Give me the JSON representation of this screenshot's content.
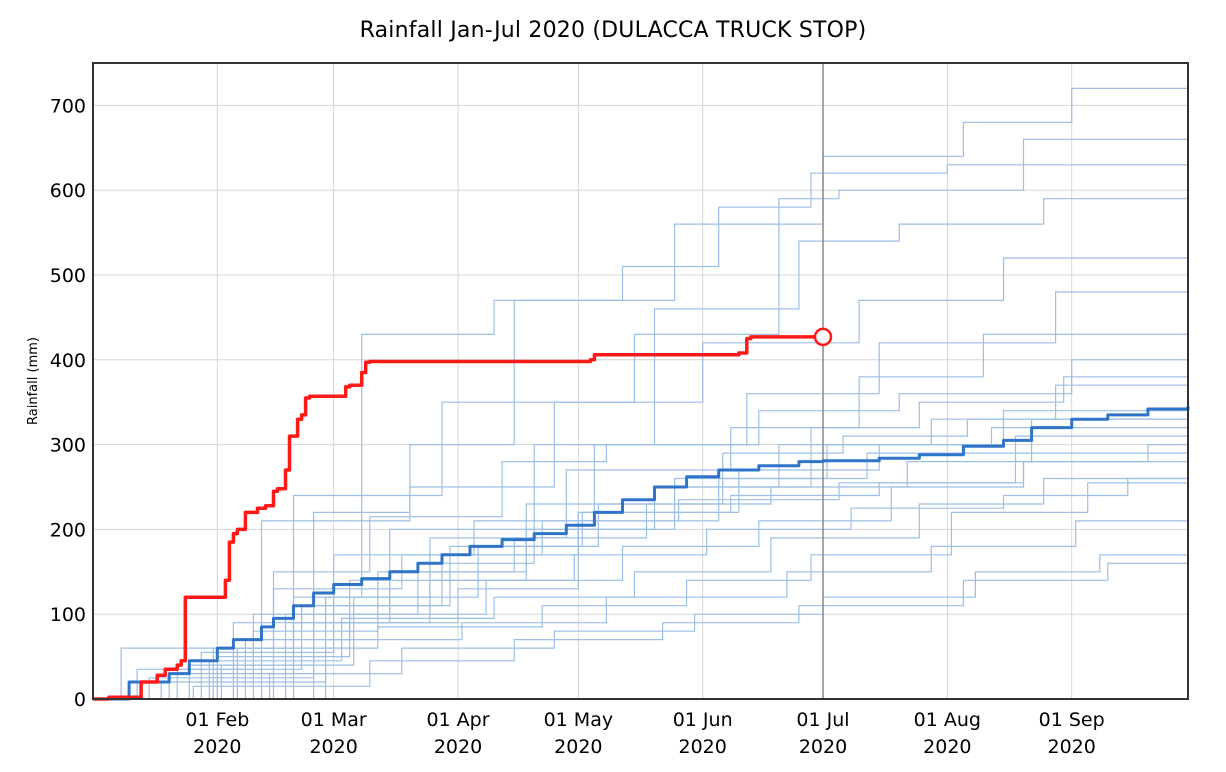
{
  "chart_data": {
    "type": "line",
    "title": "Rainfall Jan-Jul 2020 (DULACCA TRUCK STOP)",
    "xlabel": "",
    "ylabel": "Rainfall (mm)",
    "xlim": [
      "2020-01-01",
      "2020-09-30"
    ],
    "ylim": [
      0,
      750
    ],
    "grid": true,
    "legend": "none",
    "y_ticks": [
      0,
      100,
      200,
      300,
      400,
      500,
      600,
      700
    ],
    "x_ticks": [
      {
        "date": "2020-02-01",
        "label": [
          "01 Feb",
          "2020"
        ]
      },
      {
        "date": "2020-03-01",
        "label": [
          "01 Mar",
          "2020"
        ]
      },
      {
        "date": "2020-04-01",
        "label": [
          "01 Apr",
          "2020"
        ]
      },
      {
        "date": "2020-05-01",
        "label": [
          "01 May",
          "2020"
        ]
      },
      {
        "date": "2020-06-01",
        "label": [
          "01 Jun",
          "2020"
        ]
      },
      {
        "date": "2020-07-01",
        "label": [
          "01 Jul",
          "2020"
        ]
      },
      {
        "date": "2020-08-01",
        "label": [
          "01 Aug",
          "2020"
        ]
      },
      {
        "date": "2020-09-01",
        "label": [
          "01 Sep",
          "2020"
        ]
      }
    ],
    "reference_line": {
      "date": "2020-07-01",
      "color": "#888888"
    },
    "colors": {
      "current": "#ff1a1a",
      "median": "#2f74c8",
      "history": "#9cbfe6"
    },
    "series": [
      {
        "role": "current",
        "x": [
          "2020-01-01",
          "2020-01-05",
          "2020-01-05",
          "2020-01-12",
          "2020-01-13",
          "2020-01-15",
          "2020-01-17",
          "2020-01-19",
          "2020-01-22",
          "2020-01-23",
          "2020-01-24",
          "2020-01-24",
          "2020-02-02",
          "2020-02-03",
          "2020-02-04",
          "2020-02-05",
          "2020-02-06",
          "2020-02-08",
          "2020-02-10",
          "2020-02-11",
          "2020-02-13",
          "2020-02-15",
          "2020-02-16",
          "2020-02-18",
          "2020-02-19",
          "2020-02-21",
          "2020-02-22",
          "2020-02-23",
          "2020-02-24",
          "2020-02-25",
          "2020-02-26",
          "2020-03-04",
          "2020-03-05",
          "2020-03-07",
          "2020-03-08",
          "2020-03-09",
          "2020-03-10",
          "2020-05-04",
          "2020-05-05",
          "2020-06-10",
          "2020-06-12",
          "2020-06-13",
          "2020-06-20",
          "2020-06-30"
        ],
        "y": [
          0,
          0,
          2,
          2,
          20,
          20,
          28,
          35,
          40,
          45,
          45,
          120,
          120,
          140,
          185,
          195,
          200,
          220,
          220,
          225,
          228,
          245,
          248,
          270,
          310,
          330,
          335,
          355,
          357,
          357,
          357,
          368,
          370,
          370,
          385,
          397,
          398,
          400,
          406,
          408,
          425,
          427,
          427,
          427
        ]
      },
      {
        "role": "median",
        "x": [
          "2020-01-01",
          "2020-01-10",
          "2020-01-20",
          "2020-01-25",
          "2020-02-01",
          "2020-02-05",
          "2020-02-12",
          "2020-02-15",
          "2020-02-20",
          "2020-02-25",
          "2020-03-01",
          "2020-03-08",
          "2020-03-15",
          "2020-03-22",
          "2020-03-28",
          "2020-04-04",
          "2020-04-12",
          "2020-04-20",
          "2020-04-28",
          "2020-05-05",
          "2020-05-12",
          "2020-05-20",
          "2020-05-28",
          "2020-06-05",
          "2020-06-15",
          "2020-06-25",
          "2020-07-01",
          "2020-07-15",
          "2020-07-25",
          "2020-08-05",
          "2020-08-15",
          "2020-08-22",
          "2020-09-01",
          "2020-09-10",
          "2020-09-20",
          "2020-09-30"
        ],
        "y": [
          0,
          20,
          30,
          45,
          60,
          70,
          85,
          95,
          110,
          125,
          135,
          142,
          150,
          160,
          170,
          180,
          188,
          195,
          205,
          220,
          235,
          250,
          262,
          270,
          275,
          280,
          281,
          284,
          288,
          298,
          305,
          320,
          330,
          335,
          342,
          345
        ]
      }
    ],
    "historical_years": [
      {
        "x": [
          "2020-01-01",
          "2020-02-28",
          "2020-03-08",
          "2020-04-10",
          "2020-05-25",
          "2020-07-01",
          "2020-08-05",
          "2020-09-01",
          "2020-09-30"
        ],
        "y": [
          0,
          120,
          430,
          470,
          560,
          640,
          680,
          720,
          750
        ]
      },
      {
        "x": [
          "2020-01-01",
          "2020-01-31",
          "2020-02-20",
          "2020-03-28",
          "2020-05-15",
          "2020-06-20",
          "2020-07-05",
          "2020-08-20",
          "2020-09-30"
        ],
        "y": [
          0,
          60,
          240,
          350,
          430,
          590,
          600,
          660,
          690
        ]
      },
      {
        "x": [
          "2020-01-01",
          "2020-02-12",
          "2020-03-20",
          "2020-04-15",
          "2020-05-12",
          "2020-06-05",
          "2020-06-28",
          "2020-08-01",
          "2020-09-30"
        ],
        "y": [
          0,
          210,
          300,
          470,
          510,
          580,
          620,
          630,
          640
        ]
      },
      {
        "x": [
          "2020-01-01",
          "2020-02-05",
          "2020-03-15",
          "2020-04-20",
          "2020-05-20",
          "2020-06-25",
          "2020-07-20",
          "2020-08-25",
          "2020-09-30"
        ],
        "y": [
          0,
          90,
          200,
          300,
          460,
          540,
          560,
          590,
          605
        ]
      },
      {
        "x": [
          "2020-01-01",
          "2020-01-25",
          "2020-02-25",
          "2020-03-20",
          "2020-04-25",
          "2020-06-01",
          "2020-07-10",
          "2020-08-15",
          "2020-09-30"
        ],
        "y": [
          0,
          40,
          220,
          250,
          350,
          420,
          470,
          520,
          535
        ]
      },
      {
        "x": [
          "2020-01-01",
          "2020-02-15",
          "2020-03-10",
          "2020-04-12",
          "2020-05-08",
          "2020-06-12",
          "2020-07-15",
          "2020-08-28",
          "2020-09-30"
        ],
        "y": [
          0,
          150,
          215,
          280,
          300,
          360,
          420,
          480,
          510
        ]
      },
      {
        "x": [
          "2020-01-01",
          "2020-01-20",
          "2020-02-20",
          "2020-03-25",
          "2020-04-28",
          "2020-06-08",
          "2020-07-10",
          "2020-08-10",
          "2020-09-30"
        ],
        "y": [
          0,
          30,
          120,
          190,
          270,
          320,
          380,
          430,
          465
        ]
      },
      {
        "x": [
          "2020-01-01",
          "2020-02-08",
          "2020-03-05",
          "2020-04-18",
          "2020-05-20",
          "2020-06-28",
          "2020-07-25",
          "2020-08-30",
          "2020-09-30"
        ],
        "y": [
          0,
          70,
          140,
          230,
          250,
          320,
          350,
          380,
          440
        ]
      },
      {
        "x": [
          "2020-01-01",
          "2020-01-28",
          "2020-03-01",
          "2020-04-05",
          "2020-05-05",
          "2020-06-15",
          "2020-07-20",
          "2020-09-01",
          "2020-09-30"
        ],
        "y": [
          0,
          55,
          170,
          210,
          300,
          340,
          360,
          400,
          410
        ]
      },
      {
        "x": [
          "2020-01-01",
          "2020-02-18",
          "2020-03-22",
          "2020-04-20",
          "2020-05-20",
          "2020-06-20",
          "2020-07-28",
          "2020-08-28",
          "2020-09-30"
        ],
        "y": [
          0,
          100,
          160,
          200,
          250,
          300,
          330,
          370,
          395
        ]
      },
      {
        "x": [
          "2020-01-01",
          "2020-01-15",
          "2020-02-25",
          "2020-04-01",
          "2020-05-01",
          "2020-06-10",
          "2020-07-15",
          "2020-08-15",
          "2020-09-30"
        ],
        "y": [
          0,
          25,
          90,
          130,
          220,
          270,
          300,
          340,
          380
        ]
      },
      {
        "x": [
          "2020-01-01",
          "2020-02-10",
          "2020-03-12",
          "2020-04-15",
          "2020-05-18",
          "2020-06-18",
          "2020-07-22",
          "2020-08-22",
          "2020-09-30"
        ],
        "y": [
          0,
          80,
          150,
          190,
          230,
          250,
          280,
          330,
          360
        ]
      },
      {
        "x": [
          "2020-01-01",
          "2020-01-22",
          "2020-02-22",
          "2020-03-28",
          "2020-05-01",
          "2020-06-05",
          "2020-07-12",
          "2020-08-18",
          "2020-09-30"
        ],
        "y": [
          0,
          35,
          110,
          170,
          210,
          260,
          290,
          310,
          330
        ]
      },
      {
        "x": [
          "2020-01-01",
          "2020-02-01",
          "2020-03-05",
          "2020-04-08",
          "2020-05-12",
          "2020-06-15",
          "2020-07-18",
          "2020-08-20",
          "2020-09-30"
        ],
        "y": [
          0,
          50,
          100,
          140,
          180,
          210,
          250,
          280,
          300
        ]
      },
      {
        "x": [
          "2020-01-01",
          "2020-01-30",
          "2020-03-03",
          "2020-04-10",
          "2020-05-15",
          "2020-06-18",
          "2020-07-25",
          "2020-08-25",
          "2020-09-30"
        ],
        "y": [
          0,
          45,
          95,
          120,
          150,
          190,
          230,
          260,
          280
        ]
      },
      {
        "x": [
          "2020-01-01",
          "2020-02-06",
          "2020-03-12",
          "2020-04-22",
          "2020-05-28",
          "2020-06-28",
          "2020-08-02",
          "2020-09-05",
          "2020-09-30"
        ],
        "y": [
          0,
          60,
          85,
          110,
          140,
          170,
          220,
          255,
          265
        ]
      },
      {
        "x": [
          "2020-01-01",
          "2020-01-18",
          "2020-02-28",
          "2020-04-02",
          "2020-05-08",
          "2020-06-22",
          "2020-07-28",
          "2020-09-02",
          "2020-09-30"
        ],
        "y": [
          0,
          20,
          70,
          90,
          120,
          150,
          180,
          210,
          240
        ]
      },
      {
        "x": [
          "2020-01-01",
          "2020-02-14",
          "2020-03-18",
          "2020-04-25",
          "2020-05-30",
          "2020-07-01",
          "2020-08-08",
          "2020-09-08",
          "2020-09-30"
        ],
        "y": [
          0,
          30,
          60,
          80,
          100,
          120,
          150,
          170,
          185
        ]
      },
      {
        "x": [
          "2020-01-01",
          "2020-01-26",
          "2020-03-10",
          "2020-04-15",
          "2020-05-22",
          "2020-06-25",
          "2020-08-05",
          "2020-09-10",
          "2020-09-30"
        ],
        "y": [
          0,
          15,
          45,
          70,
          90,
          110,
          140,
          160,
          175
        ]
      },
      {
        "x": [
          "2020-01-01",
          "2020-02-02",
          "2020-03-06",
          "2020-04-06",
          "2020-05-06",
          "2020-06-06",
          "2020-07-06",
          "2020-08-06",
          "2020-09-30"
        ],
        "y": [
          0,
          40,
          120,
          180,
          230,
          290,
          310,
          330,
          345
        ]
      },
      {
        "x": [
          "2020-01-01",
          "2020-01-12",
          "2020-02-10",
          "2020-03-15",
          "2020-04-18",
          "2020-05-25",
          "2020-07-02",
          "2020-08-12",
          "2020-09-30"
        ],
        "y": [
          0,
          35,
          100,
          150,
          200,
          260,
          300,
          320,
          350
        ]
      },
      {
        "x": [
          "2020-01-01",
          "2020-02-20",
          "2020-03-25",
          "2020-04-30",
          "2020-06-02",
          "2020-07-08",
          "2020-08-15",
          "2020-09-15",
          "2020-09-30"
        ],
        "y": [
          0,
          90,
          140,
          170,
          200,
          225,
          240,
          260,
          275
        ]
      },
      {
        "x": [
          "2020-01-01",
          "2020-01-08",
          "2020-02-15",
          "2020-03-18",
          "2020-04-22",
          "2020-05-26",
          "2020-07-05",
          "2020-08-18",
          "2020-09-30"
        ],
        "y": [
          0,
          60,
          130,
          170,
          210,
          235,
          255,
          290,
          300
        ]
      },
      {
        "x": [
          "2020-01-01",
          "2020-02-25",
          "2020-03-30",
          "2020-05-02",
          "2020-06-08",
          "2020-07-15",
          "2020-08-20",
          "2020-09-20",
          "2020-09-30"
        ],
        "y": [
          0,
          110,
          180,
          220,
          240,
          255,
          280,
          300,
          310
        ]
      }
    ]
  }
}
